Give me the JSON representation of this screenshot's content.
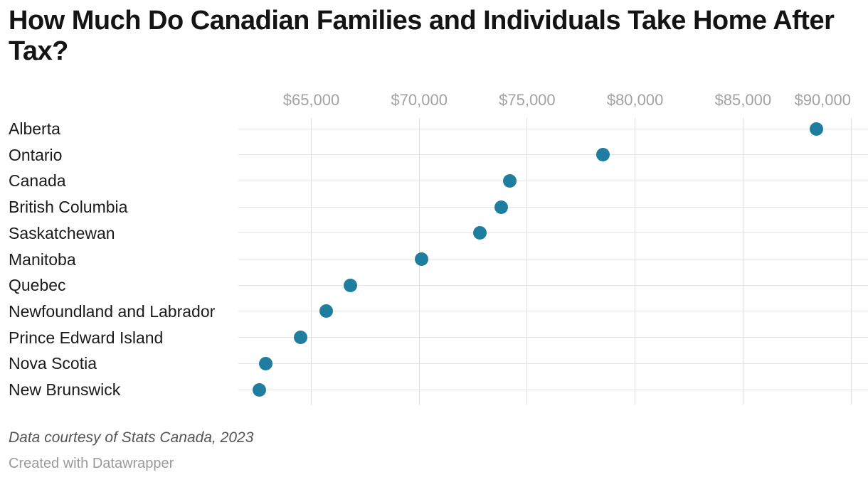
{
  "title": "How Much Do Canadian Families and Individuals Take Home After Tax?",
  "footer": {
    "source_note": "Data courtesy of Stats Canada, 2023",
    "credit": "Created with Datawrapper"
  },
  "colors": {
    "dot": "#1f7ea0",
    "grid_vertical": "#dedede",
    "grid_horizontal": "#e4e4e4",
    "tick_label": "#a2a2a2",
    "row_label": "#1a1a1a",
    "title": "#141414"
  },
  "chart_data": {
    "type": "scatter",
    "variant": "horizontal-dot-plot",
    "title": "How Much Do Canadian Families and Individuals Take Home After Tax?",
    "xlabel": "",
    "ylabel": "",
    "categories": [
      "Alberta",
      "Ontario",
      "Canada",
      "British Columbia",
      "Saskatchewan",
      "Manitoba",
      "Quebec",
      "Newfoundland and Labrador",
      "Prince Edward Island",
      "Nova Scotia",
      "New Brunswick"
    ],
    "values": [
      88400,
      78500,
      74200,
      73800,
      72800,
      70100,
      66800,
      65700,
      64500,
      62900,
      62600
    ],
    "x_ticks": [
      {
        "value": 65000,
        "label": "$65,000"
      },
      {
        "value": 70000,
        "label": "$70,000"
      },
      {
        "value": 75000,
        "label": "$75,000"
      },
      {
        "value": 80000,
        "label": "$80,000"
      },
      {
        "value": 85000,
        "label": "$85,000"
      },
      {
        "value": 90000,
        "label": "$90,000"
      }
    ],
    "xlim": [
      61600,
      90800
    ],
    "grid": true,
    "legend": "none",
    "axis_position": "top",
    "source": "Data courtesy of Stats Canada, 2023"
  }
}
